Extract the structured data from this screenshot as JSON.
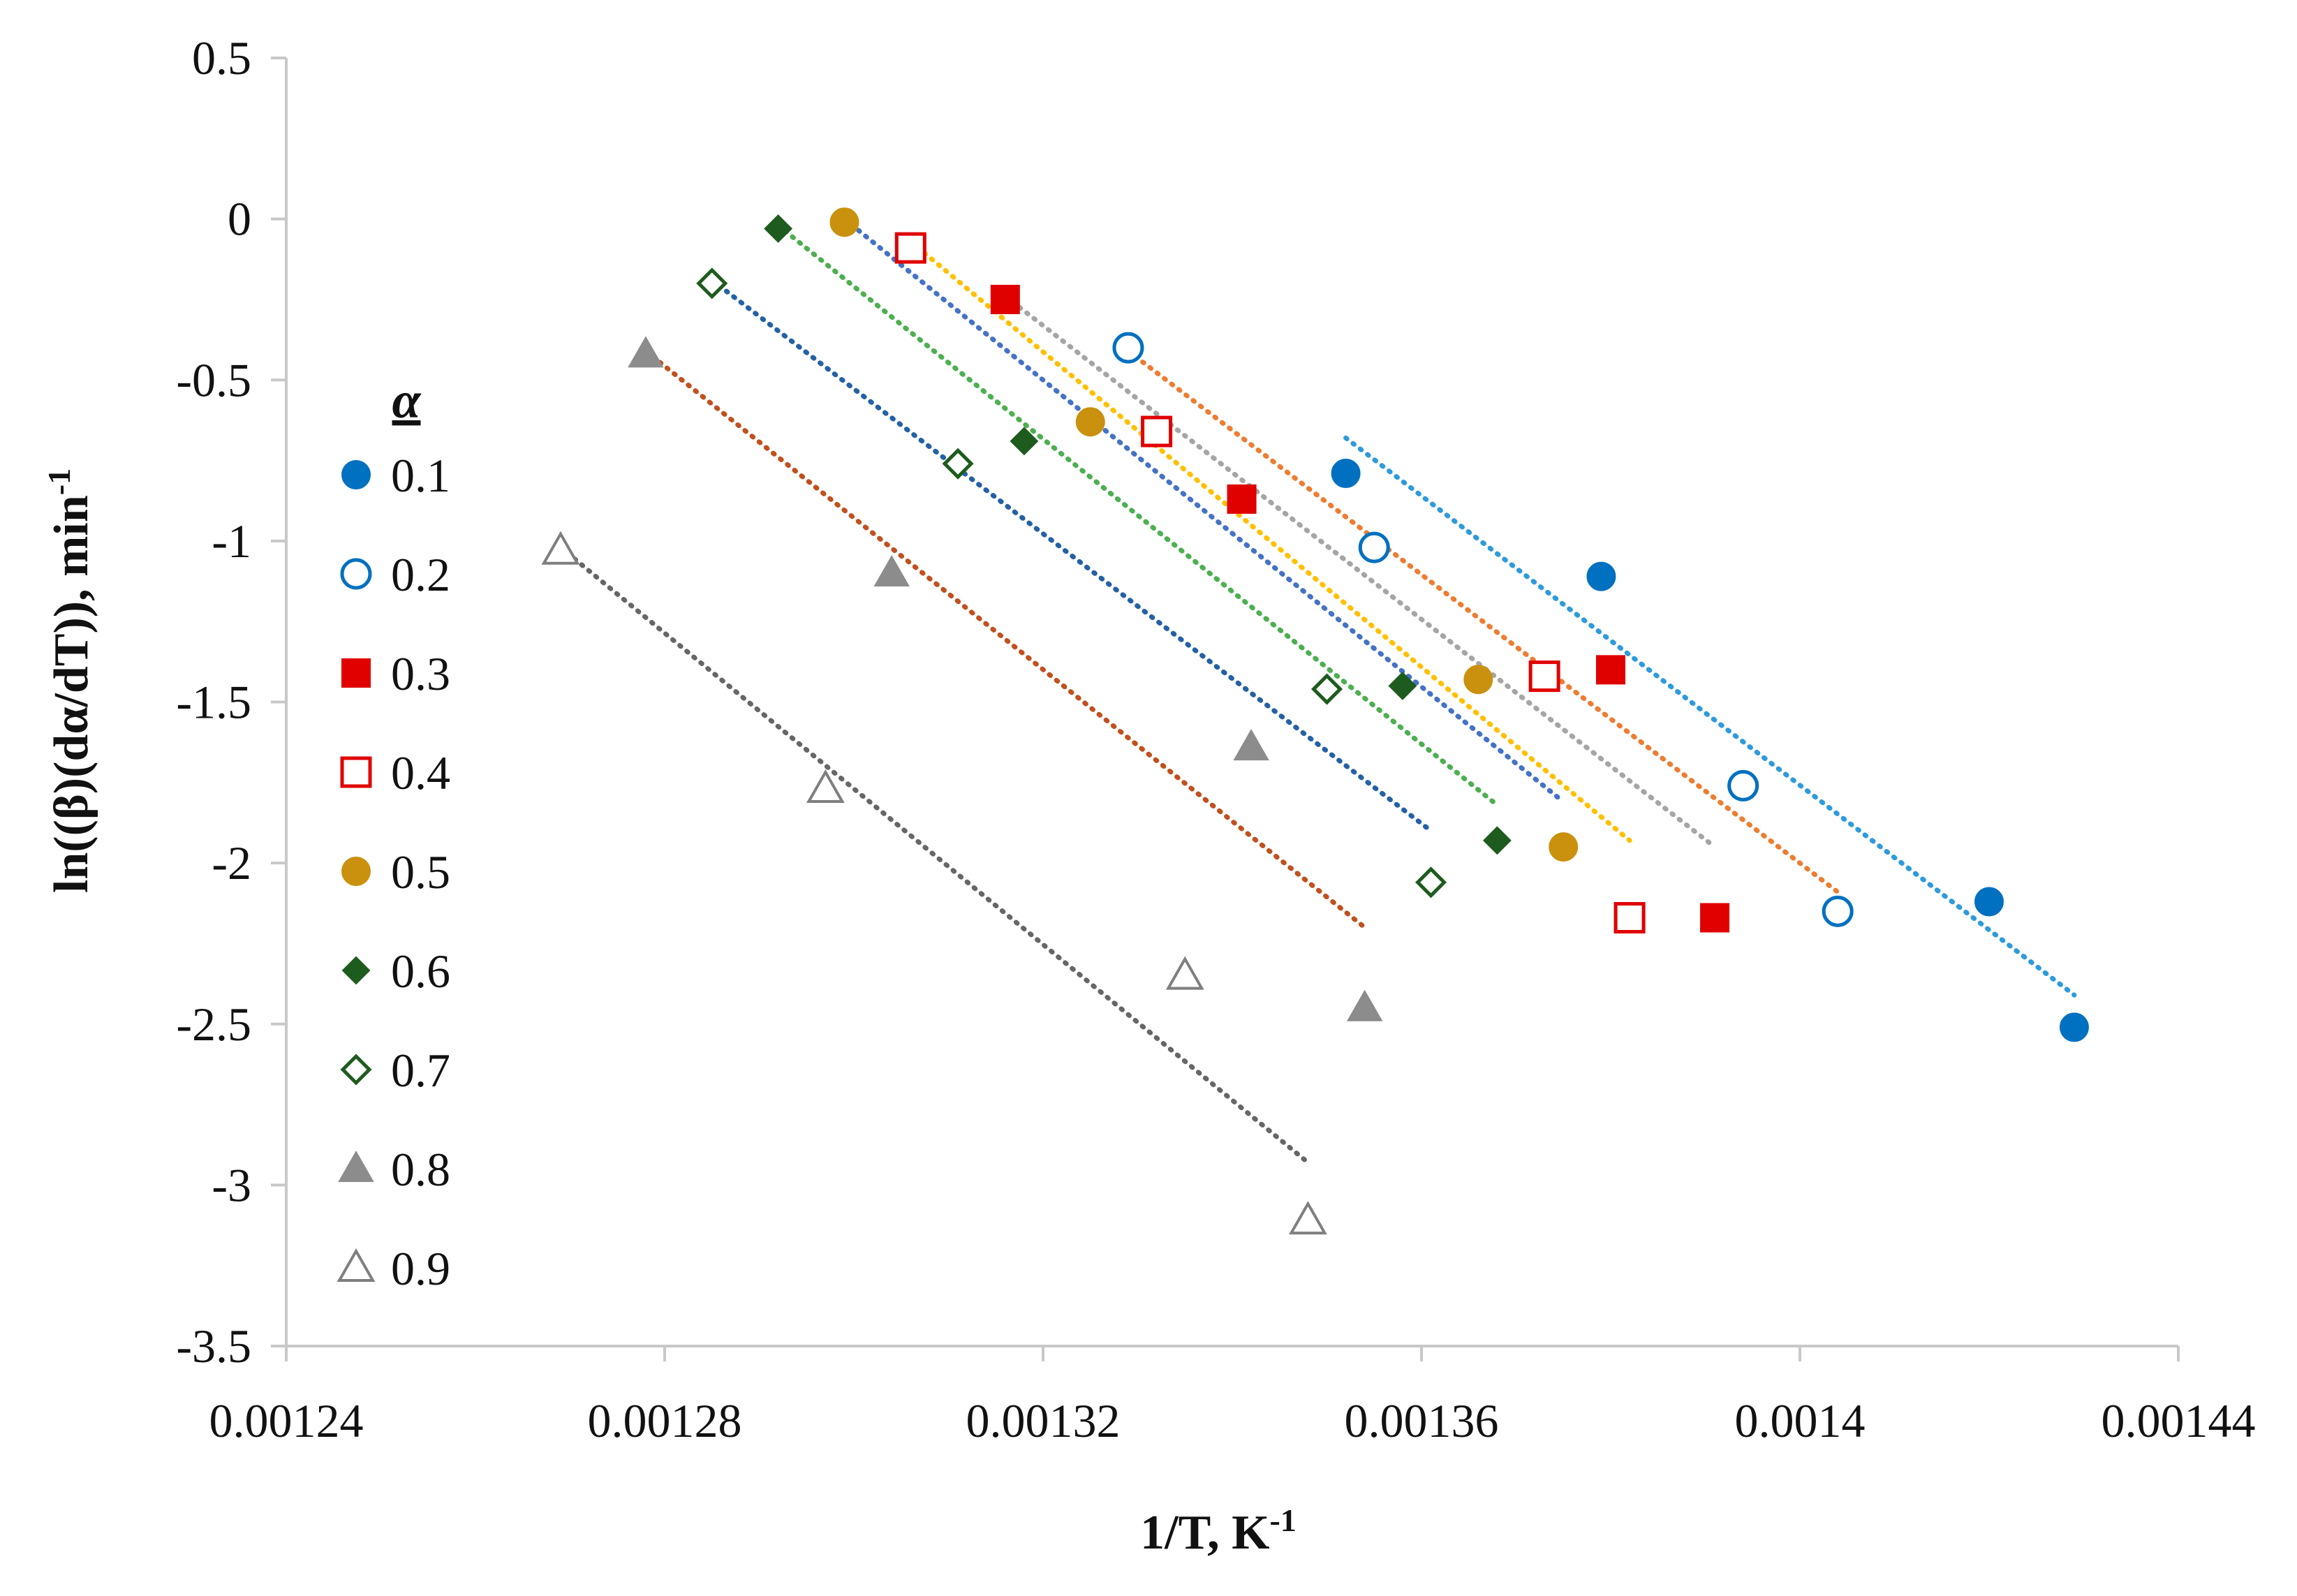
{
  "chart_data": {
    "type": "scatter",
    "title": "",
    "xlabel": "1/T, K",
    "xlabel_sup": "-1",
    "ylabel": "ln((β)(dα/dT)), min",
    "ylabel_sup": "-1",
    "xlim": [
      0.00124,
      0.00144
    ],
    "ylim": [
      -3.5,
      0.5
    ],
    "x_ticks": [
      0.00124,
      0.00128,
      0.00132,
      0.00136,
      0.0014,
      0.00144
    ],
    "x_tick_labels": [
      "0.00124",
      "0.00128",
      "0.00132",
      "0.00136",
      "0.0014",
      "0.00144"
    ],
    "y_ticks": [
      0.5,
      0,
      -0.5,
      -1,
      -1.5,
      -2,
      -2.5,
      -3,
      -3.5
    ],
    "y_tick_labels": [
      "0.5",
      "0",
      "-0.5",
      "-1",
      "-1.5",
      "-2",
      "-2.5",
      "-3",
      "-3.5"
    ],
    "grid": false,
    "legend_title": "α",
    "legend_position": "left",
    "series": [
      {
        "name": "0.1",
        "marker": "circle",
        "filled": true,
        "color": "#0070C0",
        "trend_color": "#2E9BDA",
        "x": [
          0.001352,
          0.001379,
          0.00142,
          0.001429
        ],
        "y": [
          -0.79,
          -1.11,
          -2.12,
          -2.51
        ],
        "trend": [
          [
            0.001352,
            -0.68
          ],
          [
            0.001429,
            -2.41
          ]
        ]
      },
      {
        "name": "0.2",
        "marker": "circle",
        "filled": false,
        "color": "#0070C0",
        "trend_color": "#ED7D31",
        "x": [
          0.001329,
          0.001355,
          0.001394,
          0.001404
        ],
        "y": [
          -0.4,
          -1.02,
          -1.76,
          -2.15
        ],
        "trend": [
          [
            0.001329,
            -0.41
          ],
          [
            0.001404,
            -2.09
          ]
        ]
      },
      {
        "name": "0.3",
        "marker": "square",
        "filled": true,
        "color": "#E00000",
        "trend_color": "#A5A5A5",
        "x": [
          0.001316,
          0.001341,
          0.00138,
          0.001391
        ],
        "y": [
          -0.25,
          -0.87,
          -1.4,
          -2.17
        ],
        "trend": [
          [
            0.001316,
            -0.24
          ],
          [
            0.001391,
            -1.95
          ]
        ]
      },
      {
        "name": "0.4",
        "marker": "square",
        "filled": false,
        "color": "#E00000",
        "trend_color": "#FFC000",
        "x": [
          0.001306,
          0.001332,
          0.001373,
          0.001382
        ],
        "y": [
          -0.09,
          -0.66,
          -1.42,
          -2.17
        ],
        "trend": [
          [
            0.001306,
            -0.07
          ],
          [
            0.001382,
            -1.93
          ]
        ]
      },
      {
        "name": "0.5",
        "marker": "circle",
        "filled": true,
        "color": "#C9910E",
        "trend_color": "#4472C4",
        "x": [
          0.001299,
          0.001325,
          0.001366,
          0.001375
        ],
        "y": [
          -0.01,
          -0.63,
          -1.43,
          -1.95
        ],
        "trend": [
          [
            0.001299,
            0.0
          ],
          [
            0.001375,
            -1.81
          ]
        ]
      },
      {
        "name": "0.6",
        "marker": "diamond",
        "filled": true,
        "color": "#1E5B1E",
        "trend_color": "#4CAF50",
        "x": [
          0.001292,
          0.001318,
          0.001358,
          0.001368
        ],
        "y": [
          -0.03,
          -0.69,
          -1.45,
          -1.93
        ],
        "trend": [
          [
            0.001292,
            -0.02
          ],
          [
            0.001368,
            -1.82
          ]
        ]
      },
      {
        "name": "0.7",
        "marker": "diamond",
        "filled": false,
        "color": "#1E5B1E",
        "trend_color": "#2461A4",
        "x": [
          0.001285,
          0.001311,
          0.00135,
          0.001361
        ],
        "y": [
          -0.2,
          -0.76,
          -1.46,
          -2.06
        ],
        "trend": [
          [
            0.001285,
            -0.19
          ],
          [
            0.001361,
            -1.9
          ]
        ]
      },
      {
        "name": "0.8",
        "marker": "triangle",
        "filled": true,
        "color": "#8C8C8C",
        "trend_color": "#C0501E",
        "x": [
          0.001278,
          0.001304,
          0.001342,
          0.001354
        ],
        "y": [
          -0.42,
          -1.1,
          -1.64,
          -2.45
        ],
        "trend": [
          [
            0.001278,
            -0.41
          ],
          [
            0.001354,
            -2.2
          ]
        ]
      },
      {
        "name": "0.9",
        "marker": "triangle",
        "filled": false,
        "color": "#7F7F7F",
        "trend_color": "#666666",
        "x": [
          0.001269,
          0.001297,
          0.001335,
          0.001348
        ],
        "y": [
          -1.03,
          -1.77,
          -2.35,
          -3.11
        ],
        "trend": [
          [
            0.001269,
            -1.02
          ],
          [
            0.001348,
            -2.93
          ]
        ]
      }
    ]
  }
}
